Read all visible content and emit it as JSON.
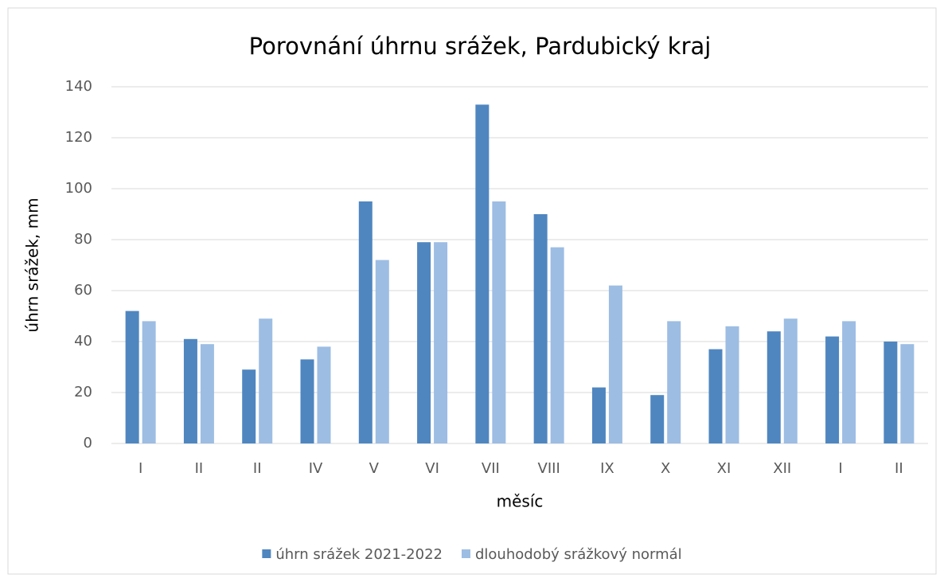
{
  "chart_data": {
    "type": "bar",
    "title": "Porovnání úhrnu srážek, Pardubický kraj",
    "x_label": "měsíc",
    "y_label": "úhrn srážek, mm",
    "categories": [
      "I",
      "II",
      "II",
      "IV",
      "V",
      "VI",
      "VII",
      "VIII",
      "IX",
      "X",
      "XI",
      "XII",
      "I",
      "II"
    ],
    "series": [
      {
        "name": "úhrn srážek 2021-2022",
        "color": "#4f86c0",
        "values": [
          52,
          41,
          29,
          33,
          95,
          79,
          133,
          90,
          22,
          19,
          37,
          44,
          42,
          40
        ]
      },
      {
        "name": "dlouhodobý srážkový normál",
        "color": "#9dbde3",
        "values": [
          48,
          39,
          49,
          38,
          72,
          79,
          95,
          77,
          62,
          48,
          46,
          49,
          48,
          39
        ]
      }
    ],
    "ylim": [
      0,
      140
    ],
    "yticks": [
      0,
      20,
      40,
      60,
      80,
      100,
      120,
      140
    ],
    "grid": true,
    "legend": "bottom"
  }
}
